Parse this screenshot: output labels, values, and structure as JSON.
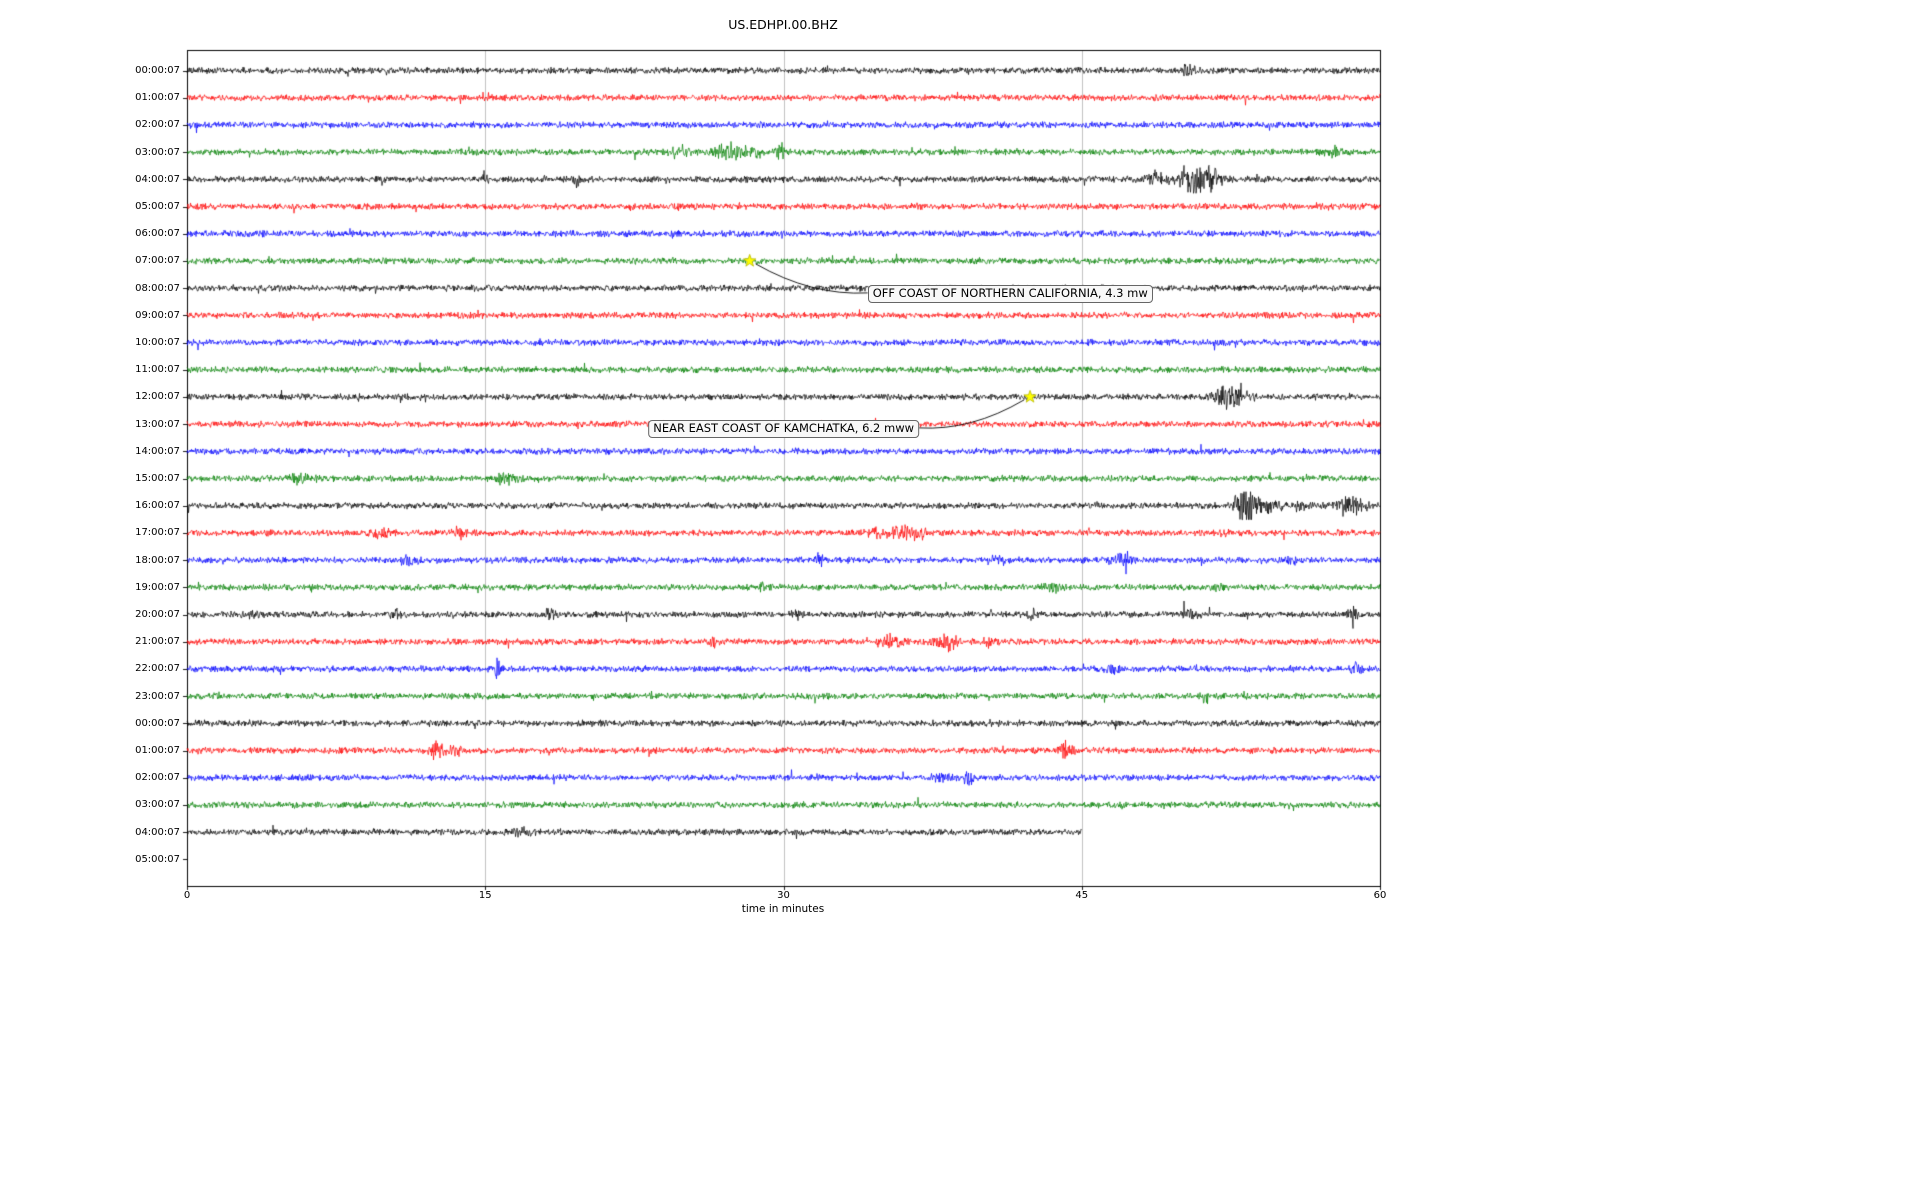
{
  "title": "US.EDHPI.00.BHZ",
  "xlabel": "time in minutes",
  "chart_data": {
    "type": "line",
    "subtype": "seismogram-helicorder-dayplot",
    "title": "US.EDHPI.00.BHZ",
    "xlabel": "time in minutes",
    "x_range": [
      0,
      60
    ],
    "x_ticks": [
      "0",
      "15",
      "30",
      "45",
      "60"
    ],
    "grid": "vertical-gridlines-on",
    "trace_color_cycle": [
      "#000000",
      "#ff0000",
      "#0000ff",
      "#008000"
    ],
    "rows": [
      {
        "label": "00:00:07",
        "color": "#000000",
        "end": 60,
        "bursts": [
          {
            "t": 50.3,
            "a": 1.5,
            "w": 0.3
          }
        ]
      },
      {
        "label": "01:00:07",
        "color": "#ff0000",
        "end": 60,
        "bursts": []
      },
      {
        "label": "02:00:07",
        "color": "#0000ff",
        "end": 60,
        "bursts": []
      },
      {
        "label": "03:00:07",
        "color": "#008000",
        "end": 60,
        "bursts": [
          {
            "t": 24.7,
            "a": 1.8,
            "w": 0.35
          },
          {
            "t": 27.3,
            "a": 2.4,
            "w": 0.5
          },
          {
            "t": 29.8,
            "a": 3.2,
            "w": 0.12
          },
          {
            "t": 28.5,
            "a": 1.4,
            "w": 0.3
          },
          {
            "t": 57.7,
            "a": 2.0,
            "w": 0.3
          }
        ]
      },
      {
        "label": "04:00:07",
        "color": "#000000",
        "end": 60,
        "bursts": [
          {
            "t": 15.0,
            "a": 3.2,
            "w": 0.08
          },
          {
            "t": 19.6,
            "a": 3.5,
            "w": 0.1
          },
          {
            "t": 48.8,
            "a": 1.8,
            "w": 0.4
          },
          {
            "t": 50.6,
            "a": 6.0,
            "w": 0.4
          },
          {
            "t": 51.5,
            "a": 3.0,
            "w": 0.4
          }
        ]
      },
      {
        "label": "05:00:07",
        "color": "#ff0000",
        "end": 60,
        "bursts": []
      },
      {
        "label": "06:00:07",
        "color": "#0000ff",
        "end": 60,
        "bursts": []
      },
      {
        "label": "07:00:07",
        "color": "#008000",
        "end": 60,
        "bursts": []
      },
      {
        "label": "08:00:07",
        "color": "#000000",
        "end": 60,
        "bursts": []
      },
      {
        "label": "09:00:07",
        "color": "#ff0000",
        "end": 60,
        "bursts": []
      },
      {
        "label": "10:00:07",
        "color": "#0000ff",
        "end": 60,
        "bursts": []
      },
      {
        "label": "11:00:07",
        "color": "#008000",
        "end": 60,
        "bursts": []
      },
      {
        "label": "12:00:07",
        "color": "#000000",
        "end": 60,
        "bursts": [
          {
            "t": 52.2,
            "a": 3.5,
            "w": 0.35
          },
          {
            "t": 53.0,
            "a": 1.5,
            "w": 0.4
          }
        ]
      },
      {
        "label": "13:00:07",
        "color": "#ff0000",
        "end": 60,
        "bursts": []
      },
      {
        "label": "14:00:07",
        "color": "#0000ff",
        "end": 60,
        "bursts": []
      },
      {
        "label": "15:00:07",
        "color": "#008000",
        "end": 60,
        "bursts": [
          {
            "t": 5.6,
            "a": 1.2,
            "w": 0.4
          },
          {
            "t": 16.0,
            "a": 1.2,
            "w": 0.4
          }
        ]
      },
      {
        "label": "16:00:07",
        "color": "#000000",
        "end": 60,
        "bursts": [
          {
            "t": 53.2,
            "a": 6.0,
            "w": 0.35
          },
          {
            "t": 54.2,
            "a": 2.0,
            "w": 0.6
          },
          {
            "t": 56.0,
            "a": 1.5,
            "w": 0.3
          },
          {
            "t": 58.2,
            "a": 2.2,
            "w": 0.4
          },
          {
            "t": 59.0,
            "a": 1.8,
            "w": 0.3
          }
        ]
      },
      {
        "label": "17:00:07",
        "color": "#ff0000",
        "end": 60,
        "bursts": [
          {
            "t": 9.8,
            "a": 1.5,
            "w": 0.25
          },
          {
            "t": 13.7,
            "a": 1.8,
            "w": 0.2
          },
          {
            "t": 34.8,
            "a": 1.5,
            "w": 0.4
          },
          {
            "t": 36.0,
            "a": 2.5,
            "w": 0.3
          },
          {
            "t": 36.8,
            "a": 1.5,
            "w": 0.3
          },
          {
            "t": 52.0,
            "a": 1.0,
            "w": 0.3
          }
        ]
      },
      {
        "label": "18:00:07",
        "color": "#0000ff",
        "end": 60,
        "bursts": [
          {
            "t": 11.2,
            "a": 1.5,
            "w": 0.3
          },
          {
            "t": 31.8,
            "a": 1.8,
            "w": 0.15
          },
          {
            "t": 40.5,
            "a": 1.0,
            "w": 0.3
          },
          {
            "t": 47.0,
            "a": 1.5,
            "w": 0.4
          },
          {
            "t": 55.5,
            "a": 1.0,
            "w": 0.3
          }
        ]
      },
      {
        "label": "19:00:07",
        "color": "#008000",
        "end": 60,
        "bursts": [
          {
            "t": 29.0,
            "a": 1.2,
            "w": 0.2
          },
          {
            "t": 43.5,
            "a": 1.2,
            "w": 0.3
          },
          {
            "t": 52.0,
            "a": 1.3,
            "w": 0.2
          }
        ]
      },
      {
        "label": "20:00:07",
        "color": "#000000",
        "end": 60,
        "bursts": [
          {
            "t": 3.2,
            "a": 1.0,
            "w": 0.2
          },
          {
            "t": 10.5,
            "a": 1.0,
            "w": 0.2
          },
          {
            "t": 18.3,
            "a": 1.5,
            "w": 0.2
          },
          {
            "t": 30.6,
            "a": 1.2,
            "w": 0.2
          },
          {
            "t": 42.6,
            "a": 1.3,
            "w": 0.2
          },
          {
            "t": 50.4,
            "a": 1.2,
            "w": 0.3
          },
          {
            "t": 58.6,
            "a": 1.8,
            "w": 0.25
          }
        ]
      },
      {
        "label": "21:00:07",
        "color": "#ff0000",
        "end": 60,
        "bursts": [
          {
            "t": 26.5,
            "a": 1.8,
            "w": 0.2
          },
          {
            "t": 35.4,
            "a": 2.2,
            "w": 0.3
          },
          {
            "t": 38.2,
            "a": 2.8,
            "w": 0.35
          },
          {
            "t": 40.3,
            "a": 1.2,
            "w": 0.2
          }
        ]
      },
      {
        "label": "22:00:07",
        "color": "#0000ff",
        "end": 60,
        "bursts": [
          {
            "t": 15.6,
            "a": 5.0,
            "w": 0.07
          },
          {
            "t": 46.5,
            "a": 1.5,
            "w": 0.3
          },
          {
            "t": 58.8,
            "a": 1.5,
            "w": 0.2
          }
        ]
      },
      {
        "label": "23:00:07",
        "color": "#008000",
        "end": 60,
        "bursts": [
          {
            "t": 51.2,
            "a": 2.2,
            "w": 0.12
          }
        ]
      },
      {
        "label": "00:00:07",
        "color": "#000000",
        "end": 60,
        "bursts": []
      },
      {
        "label": "01:00:07",
        "color": "#ff0000",
        "end": 60,
        "bursts": [
          {
            "t": 12.6,
            "a": 2.6,
            "w": 0.25
          },
          {
            "t": 13.5,
            "a": 2.0,
            "w": 0.2
          },
          {
            "t": 44.2,
            "a": 2.6,
            "w": 0.25
          }
        ]
      },
      {
        "label": "02:00:07",
        "color": "#0000ff",
        "end": 60,
        "bursts": [
          {
            "t": 38.0,
            "a": 1.3,
            "w": 0.3
          },
          {
            "t": 39.3,
            "a": 1.5,
            "w": 0.25
          }
        ]
      },
      {
        "label": "03:00:07",
        "color": "#008000",
        "end": 60,
        "bursts": []
      },
      {
        "label": "04:00:07",
        "color": "#000000",
        "end": 45,
        "bursts": [
          {
            "t": 17.0,
            "a": 1.0,
            "w": 0.4
          }
        ]
      },
      {
        "label": "05:00:07",
        "color": "#ff0000",
        "end": 0,
        "bursts": []
      }
    ],
    "events": [
      {
        "label": "OFF COAST OF NORTHERN CALIFORNIA, 4.3 mw",
        "row": 7,
        "row_label": "07:00:07",
        "t": 28.3,
        "marker": "yellow-star"
      },
      {
        "label": "NEAR EAST COAST OF KAMCHATKA, 6.2 mww",
        "row": 12,
        "row_label": "12:00:07",
        "t": 42.4,
        "marker": "yellow-star"
      }
    ]
  }
}
